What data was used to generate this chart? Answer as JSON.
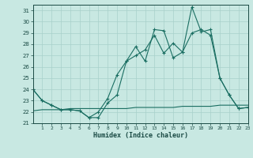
{
  "xlabel": "Humidex (Indice chaleur)",
  "xlim": [
    0,
    23
  ],
  "ylim": [
    21,
    31.5
  ],
  "yticks": [
    21,
    22,
    23,
    24,
    25,
    26,
    27,
    28,
    29,
    30,
    31
  ],
  "xtick_labels": [
    "1",
    "2",
    "3",
    "4",
    "5",
    "6",
    "7",
    "8",
    "9",
    "10",
    "11",
    "12",
    "13",
    "14",
    "15",
    "16",
    "17",
    "18",
    "19",
    "20",
    "21",
    "22",
    "23"
  ],
  "xtick_pos": [
    1,
    2,
    3,
    4,
    5,
    6,
    7,
    8,
    9,
    10,
    11,
    12,
    13,
    14,
    15,
    16,
    17,
    18,
    19,
    20,
    21,
    22,
    23
  ],
  "background_color": "#c8e8e2",
  "grid_color": "#a8d0ca",
  "line_color": "#1a6e62",
  "series1_x": [
    0,
    1,
    2,
    3,
    4,
    5,
    6,
    7,
    8,
    9,
    10,
    11,
    12,
    13,
    14,
    15,
    16,
    17,
    18,
    19,
    20,
    21,
    22,
    23
  ],
  "series1_y": [
    24.0,
    23.0,
    22.6,
    22.2,
    22.2,
    22.1,
    21.5,
    21.5,
    22.8,
    23.5,
    26.5,
    27.8,
    26.5,
    29.3,
    29.2,
    26.8,
    27.3,
    31.3,
    29.1,
    29.3,
    25.0,
    23.5,
    22.3,
    22.4
  ],
  "series2_x": [
    0,
    1,
    2,
    3,
    4,
    5,
    6,
    7,
    8,
    9,
    10,
    11,
    12,
    13,
    14,
    15,
    16,
    17,
    18,
    19,
    20,
    21,
    22,
    23
  ],
  "series2_y": [
    24.0,
    23.0,
    22.6,
    22.2,
    22.2,
    22.1,
    21.5,
    22.0,
    23.2,
    25.3,
    26.5,
    27.0,
    27.5,
    28.8,
    27.2,
    28.1,
    27.3,
    29.0,
    29.3,
    28.8,
    25.0,
    23.5,
    22.3,
    22.4
  ],
  "series3_x": [
    0,
    1,
    2,
    3,
    4,
    5,
    6,
    7,
    8,
    9,
    10,
    11,
    12,
    13,
    14,
    15,
    16,
    17,
    18,
    19,
    20,
    21,
    22,
    23
  ],
  "series3_y": [
    22.1,
    22.2,
    22.2,
    22.2,
    22.3,
    22.3,
    22.3,
    22.3,
    22.3,
    22.3,
    22.3,
    22.4,
    22.4,
    22.4,
    22.4,
    22.4,
    22.5,
    22.5,
    22.5,
    22.5,
    22.6,
    22.6,
    22.6,
    22.6
  ]
}
